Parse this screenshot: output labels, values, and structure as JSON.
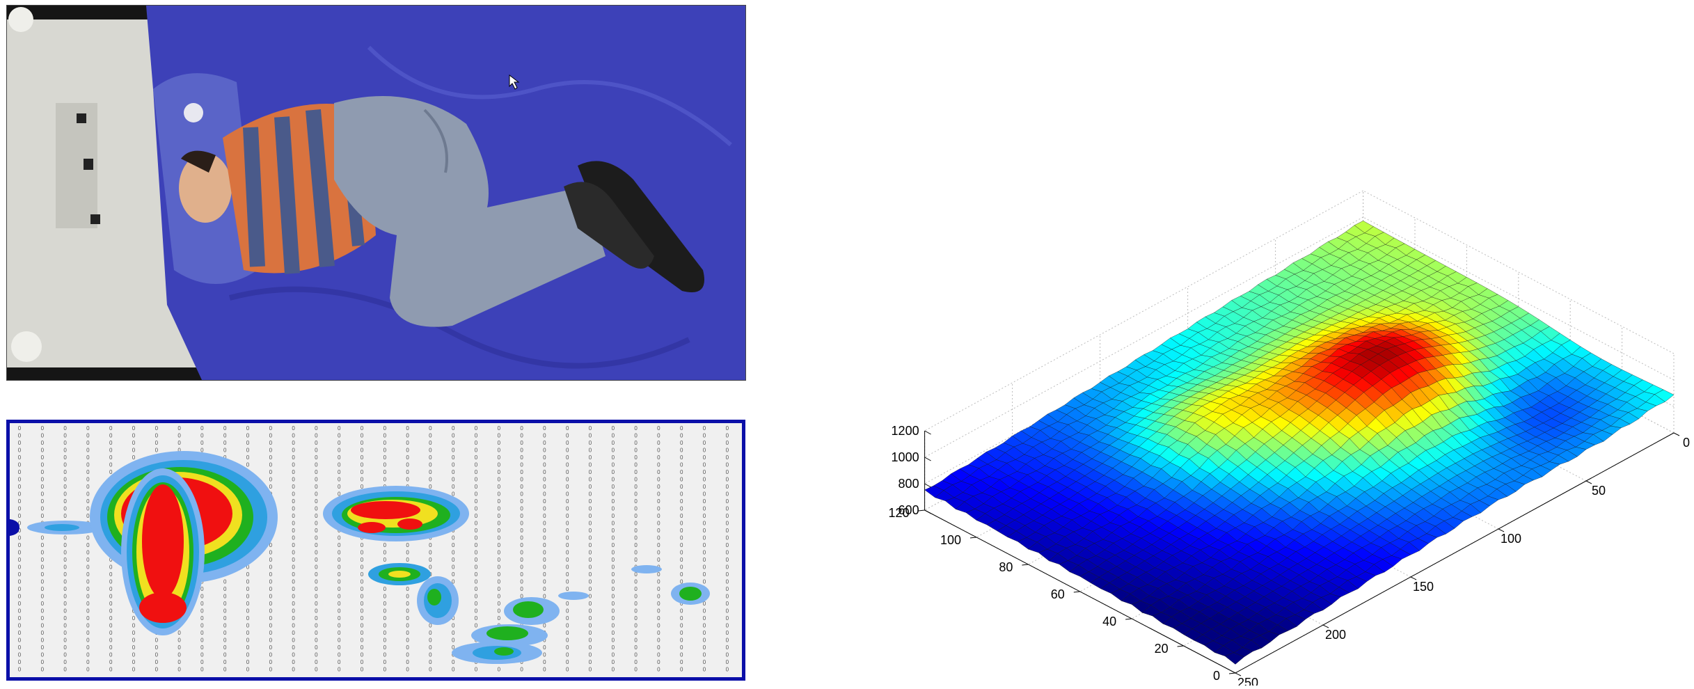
{
  "photo": {
    "description_icon": "person-lying-on-bed-photo",
    "colors": {
      "sheet": "#3a3fb8",
      "shirt_orange": "#d9733f",
      "shirt_blue": "#4a5a8a",
      "jeans": "#8f9bb0"
    }
  },
  "pressure_map": {
    "colors": {
      "border": "#0b0fa8",
      "background": "#f0f0f0",
      "low": "#7fb3f0",
      "mid": "#2fa0e0",
      "green": "#1fb01f",
      "yellow": "#f0e020",
      "red": "#f01010"
    }
  },
  "chart_data": {
    "type": "surface3d",
    "title": "",
    "xlabel": "",
    "ylabel": "",
    "zlabel": "",
    "x_ticks": [
      "0",
      "50",
      "100",
      "150",
      "200",
      "250"
    ],
    "y_ticks": [
      "0",
      "20",
      "40",
      "60",
      "80",
      "100",
      "120"
    ],
    "z_ticks": [
      "600",
      "800",
      "1000",
      "1200"
    ],
    "xlim": [
      0,
      250
    ],
    "ylim": [
      0,
      120
    ],
    "zlim": [
      600,
      1200
    ],
    "colormap": "jet",
    "grid": true
  }
}
